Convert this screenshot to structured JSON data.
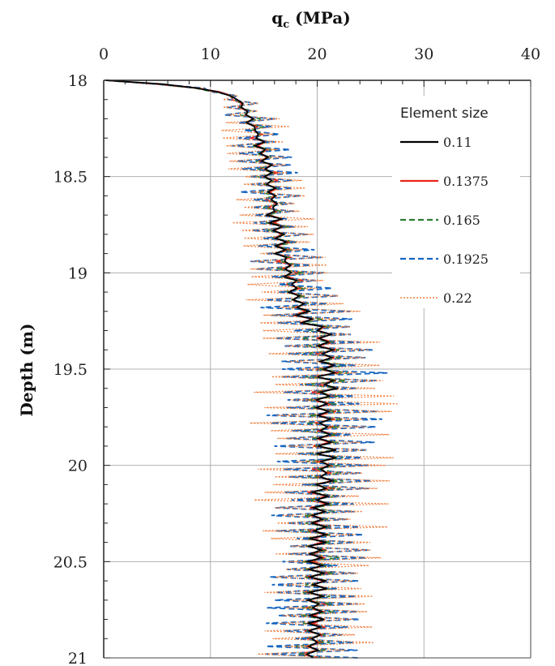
{
  "chart_data": {
    "type": "line",
    "xlabel_main": "q",
    "xlabel_sub": "c",
    "xlabel_unit": " (MPa)",
    "ylabel": "Depth (m)",
    "xlim": [
      0,
      40
    ],
    "ylim": [
      18,
      21
    ],
    "x_axis_position": "top",
    "y_axis_inverted": true,
    "x_ticks": [
      "0",
      "10",
      "20",
      "30",
      "40"
    ],
    "y_ticks": [
      "18",
      "18.5",
      "19",
      "19.5",
      "20",
      "20.5",
      "21"
    ],
    "grid": true,
    "legend": {
      "title": "Element size",
      "placement": "top-right"
    },
    "depth_step": 0.02,
    "mean_profile": [
      {
        "depth": 18.0,
        "qc": 0.2
      },
      {
        "depth": 18.01,
        "qc": 3.0
      },
      {
        "depth": 18.03,
        "qc": 7.5
      },
      {
        "depth": 18.05,
        "qc": 10.0
      },
      {
        "depth": 18.08,
        "qc": 11.8
      },
      {
        "depth": 18.12,
        "qc": 12.8
      },
      {
        "depth": 18.2,
        "qc": 13.8
      },
      {
        "depth": 18.3,
        "qc": 14.5
      },
      {
        "depth": 18.5,
        "qc": 15.5
      },
      {
        "depth": 18.7,
        "qc": 16.0
      },
      {
        "depth": 18.9,
        "qc": 16.8
      },
      {
        "depth": 19.1,
        "qc": 18.0
      },
      {
        "depth": 19.25,
        "qc": 19.0
      },
      {
        "depth": 19.3,
        "qc": 20.5
      },
      {
        "depth": 19.5,
        "qc": 21.0
      },
      {
        "depth": 19.7,
        "qc": 20.5
      },
      {
        "depth": 19.9,
        "qc": 20.8
      },
      {
        "depth": 20.1,
        "qc": 20.5
      },
      {
        "depth": 20.3,
        "qc": 20.2
      },
      {
        "depth": 20.5,
        "qc": 20.0
      },
      {
        "depth": 20.7,
        "qc": 20.0
      },
      {
        "depth": 20.9,
        "qc": 19.8
      },
      {
        "depth": 21.0,
        "qc": 19.5
      }
    ],
    "series": [
      {
        "name": "0.11",
        "color": "#000000",
        "dash": "solid",
        "amplitude_factor": 0.12
      },
      {
        "name": "0.1375",
        "color": "#e8251b",
        "dash": "solid",
        "amplitude_factor": 0.18
      },
      {
        "name": "0.165",
        "color": "#2e7d32",
        "dash": "dashed",
        "amplitude_factor": 0.28
      },
      {
        "name": "0.1925",
        "color": "#1565c0",
        "dash": "dashed",
        "amplitude_factor": 0.75
      },
      {
        "name": "0.22",
        "color": "#f08040",
        "dash": "dotted",
        "amplitude_factor": 0.95
      }
    ],
    "oscillation_amplitude": [
      {
        "depth": 18.0,
        "amp": 0.0
      },
      {
        "depth": 18.08,
        "amp": 1.0
      },
      {
        "depth": 18.2,
        "amp": 3.5
      },
      {
        "depth": 18.5,
        "amp": 4.0
      },
      {
        "depth": 19.0,
        "amp": 4.5
      },
      {
        "depth": 19.3,
        "amp": 6.5
      },
      {
        "depth": 19.5,
        "amp": 7.5
      },
      {
        "depth": 20.0,
        "amp": 7.0
      },
      {
        "depth": 20.5,
        "amp": 6.5
      },
      {
        "depth": 21.0,
        "amp": 6.0
      }
    ]
  }
}
